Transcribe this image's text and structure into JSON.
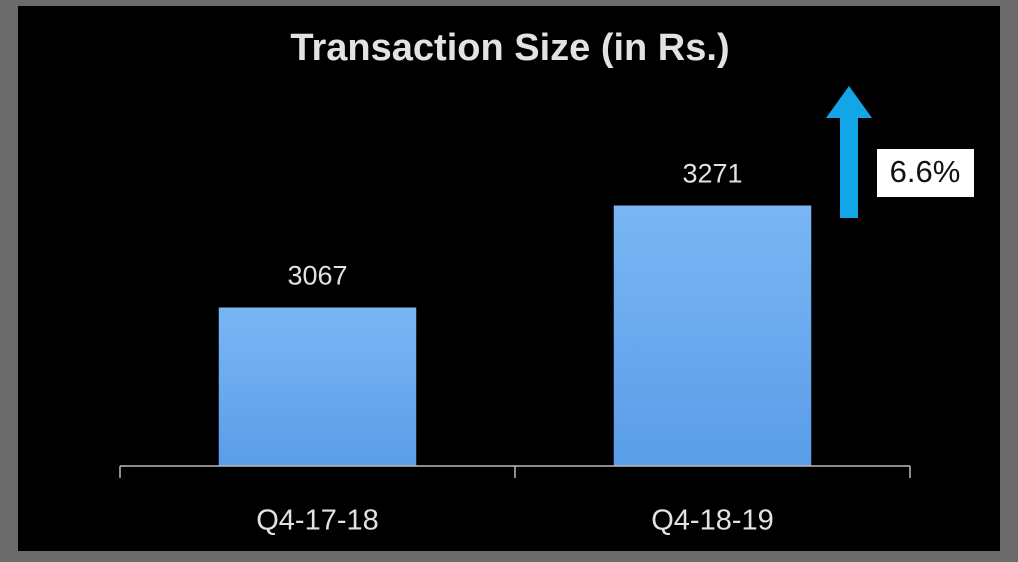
{
  "chart_data": {
    "type": "bar",
    "title": "Transaction Size (in Rs.)",
    "categories": [
      "Q4-17-18",
      "Q4-18-19"
    ],
    "values": [
      3067,
      3271
    ],
    "color": "#5fa3ee",
    "ylim": [
      2750,
      3350
    ],
    "annotation": "6.6%"
  }
}
